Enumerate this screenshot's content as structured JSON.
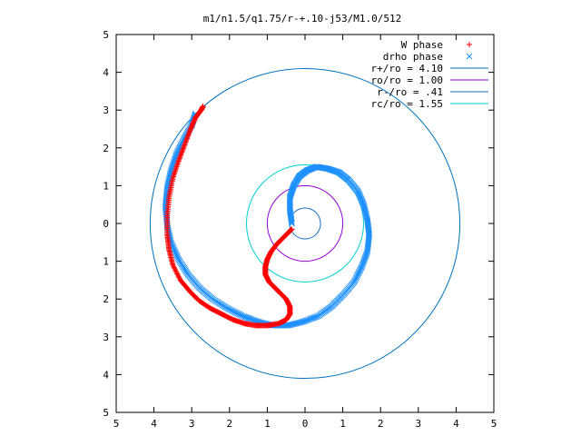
{
  "chart_data": {
    "type": "scatter",
    "title": "m1/n1.5/q1.75/r-+.10-j53/M1.0/512",
    "xlim": [
      -5,
      5
    ],
    "ylim": [
      -5,
      5
    ],
    "xticks": [
      -5,
      -4,
      -3,
      -2,
      -1,
      0,
      1,
      2,
      3,
      4,
      5
    ],
    "yticks": [
      -5,
      -4,
      -3,
      -2,
      -1,
      0,
      1,
      2,
      3,
      4,
      5
    ],
    "xtick_labels": [
      "5",
      "4",
      "3",
      "2",
      "1",
      "0",
      "1",
      "2",
      "3",
      "4",
      "5"
    ],
    "ytick_labels": [
      "5",
      "4",
      "3",
      "2",
      "1",
      "0",
      "1",
      "2",
      "3",
      "4",
      "5"
    ],
    "grid": false,
    "legend_position": "top-right",
    "legend": [
      {
        "label": "W phase",
        "marker": "+",
        "color": "#ff0000"
      },
      {
        "label": "drho phase",
        "marker": "x",
        "color": "#1e90ff"
      },
      {
        "label": "r+/ro = 4.10",
        "line": true,
        "color": "#0072bd"
      },
      {
        "label": "ro/ro = 1.00",
        "line": true,
        "color": "#9400d3"
      },
      {
        "label": "r-/ro = .41",
        "line": true,
        "color": "#1a6fc0"
      },
      {
        "label": "rc/ro = 1.55",
        "line": true,
        "color": "#00ced1"
      }
    ],
    "circles": [
      {
        "name": "r+/ro = 4.10",
        "radius": 4.1,
        "color": "#0072bd"
      },
      {
        "name": "ro/ro = 1.00",
        "radius": 1.0,
        "color": "#9400d3"
      },
      {
        "name": "r-/ro = .41",
        "radius": 0.41,
        "color": "#1a6fc0"
      },
      {
        "name": "rc/ro = 1.55",
        "radius": 1.55,
        "color": "#00ced1"
      }
    ],
    "series": [
      {
        "name": "W phase",
        "marker": "+",
        "color": "#ff0000",
        "x": [
          -0.35,
          -0.45,
          -0.6,
          -0.75,
          -0.9,
          -1.0,
          -1.05,
          -1.05,
          -0.95,
          -0.8,
          -0.65,
          -0.5,
          -0.4,
          -0.4,
          -0.5,
          -0.7,
          -1.0,
          -1.3,
          -1.6,
          -1.9,
          -2.2,
          -2.5,
          -2.8,
          -3.05,
          -3.3,
          -3.5,
          -3.6,
          -3.65,
          -3.65,
          -3.6,
          -3.5,
          -3.35,
          -3.2,
          -3.05,
          -2.9,
          -2.75,
          -2.7
        ],
        "y": [
          -0.15,
          -0.25,
          -0.4,
          -0.55,
          -0.75,
          -0.95,
          -1.15,
          -1.35,
          -1.55,
          -1.7,
          -1.85,
          -2.0,
          -2.2,
          -2.4,
          -2.55,
          -2.65,
          -2.7,
          -2.7,
          -2.65,
          -2.55,
          -2.4,
          -2.25,
          -2.05,
          -1.8,
          -1.5,
          -1.1,
          -0.7,
          -0.3,
          0.2,
          0.7,
          1.2,
          1.65,
          2.05,
          2.45,
          2.8,
          3.0,
          3.1
        ]
      },
      {
        "name": "drho phase",
        "marker": "x",
        "color": "#1e90ff",
        "x": [
          -0.35,
          -0.4,
          -0.4,
          -0.3,
          -0.15,
          0.05,
          0.3,
          0.6,
          0.9,
          1.15,
          1.4,
          1.55,
          1.65,
          1.7,
          1.65,
          1.5,
          1.3,
          1.0,
          0.7,
          0.35,
          -0.05,
          -0.45,
          -0.85,
          -1.25,
          -1.65,
          -2.05,
          -2.45,
          -2.8,
          -3.1,
          -3.35,
          -3.55,
          -3.65,
          -3.7,
          -3.65,
          -3.55,
          -3.4,
          -3.2,
          -3.0,
          -2.9
        ],
        "y": [
          0.0,
          0.35,
          0.7,
          1.0,
          1.25,
          1.4,
          1.5,
          1.45,
          1.35,
          1.15,
          0.85,
          0.5,
          0.1,
          -0.3,
          -0.75,
          -1.15,
          -1.55,
          -1.9,
          -2.2,
          -2.45,
          -2.6,
          -2.7,
          -2.7,
          -2.6,
          -2.45,
          -2.25,
          -2.0,
          -1.7,
          -1.35,
          -0.95,
          -0.5,
          -0.05,
          0.45,
          0.95,
          1.4,
          1.85,
          2.25,
          2.6,
          2.9
        ]
      }
    ]
  }
}
